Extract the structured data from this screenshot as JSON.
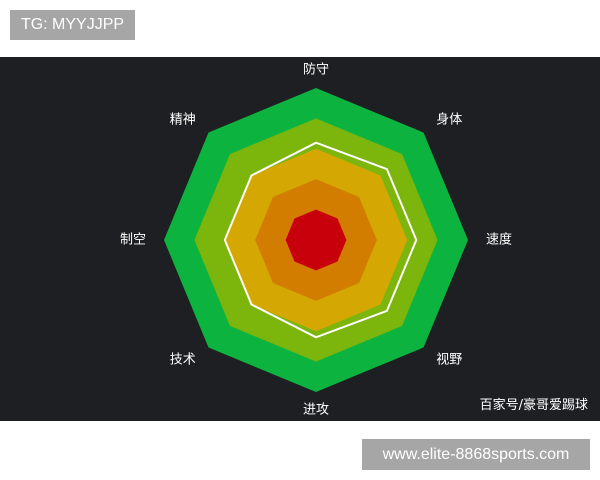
{
  "top_tag": "TG: MYYJJPP",
  "credit": "百家号/豪哥爱踢球",
  "watermark": "www.elite-8868sports.com",
  "chart_data": {
    "type": "radar",
    "axes": [
      "防守",
      "身体",
      "速度",
      "视野",
      "进攻",
      "技术",
      "制空",
      "精神"
    ],
    "rmax": 5,
    "bands": [
      {
        "level": 5,
        "color": "#0db33f"
      },
      {
        "level": 4,
        "color": "#7cb50c"
      },
      {
        "level": 3,
        "color": "#d4a702"
      },
      {
        "level": 2,
        "color": "#d27c00"
      },
      {
        "level": 1,
        "color": "#c8000b"
      }
    ],
    "series": [
      {
        "values": [
          3.2,
          3.3,
          3.3,
          3.3,
          3.2,
          3.0,
          3.0,
          3.0
        ],
        "color": "#ffffff"
      }
    ]
  }
}
